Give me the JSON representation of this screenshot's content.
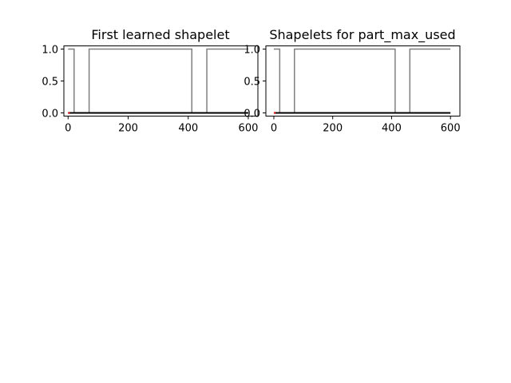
{
  "chart_data": [
    {
      "type": "line",
      "title": "First learned shapelet",
      "xlabel": "",
      "ylabel": "",
      "xlim": [
        -14,
        632
      ],
      "ylim": [
        -0.05,
        1.05
      ],
      "x_ticks": [
        0,
        200,
        400,
        600
      ],
      "x_tick_labels": [
        "0",
        "200",
        "400",
        "600"
      ],
      "y_ticks": [
        0.0,
        0.5,
        1.0
      ],
      "y_tick_labels": [
        "0.0",
        "0.5",
        "1.0"
      ],
      "grid": false,
      "legend": null,
      "series": [
        {
          "color": "#808080",
          "x": [
            0,
            20,
            20,
            70,
            70,
            412,
            412,
            462,
            462,
            600
          ],
          "values": [
            1,
            1,
            0,
            0,
            1,
            1,
            0,
            0,
            1,
            1
          ]
        },
        {
          "color": "#000000",
          "x": [
            0,
            600
          ],
          "values": [
            0,
            0
          ]
        },
        {
          "color": "#d62728",
          "x": [
            0,
            6
          ],
          "values": [
            0,
            0
          ]
        }
      ]
    },
    {
      "type": "line",
      "title": "Shapelets for part_max_used",
      "xlabel": "",
      "ylabel": "",
      "xlim": [
        -27,
        632
      ],
      "ylim": [
        -0.05,
        1.05
      ],
      "x_ticks": [
        0,
        200,
        400,
        600
      ],
      "x_tick_labels": [
        "0",
        "200",
        "400",
        "600"
      ],
      "y_ticks": [
        0.0,
        0.5,
        1.0
      ],
      "y_tick_labels": [
        "0.0",
        "0.5",
        "1.0"
      ],
      "grid": false,
      "legend": null,
      "series": [
        {
          "color": "#808080",
          "x": [
            0,
            20,
            20,
            70,
            70,
            412,
            412,
            462,
            462,
            600
          ],
          "values": [
            1,
            1,
            0,
            0,
            1,
            1,
            0,
            0,
            1,
            1
          ]
        },
        {
          "color": "#000000",
          "x": [
            0,
            600
          ],
          "values": [
            0,
            0
          ]
        },
        {
          "color": "#d62728",
          "x": [
            0,
            6
          ],
          "values": [
            0,
            0
          ]
        }
      ]
    }
  ]
}
